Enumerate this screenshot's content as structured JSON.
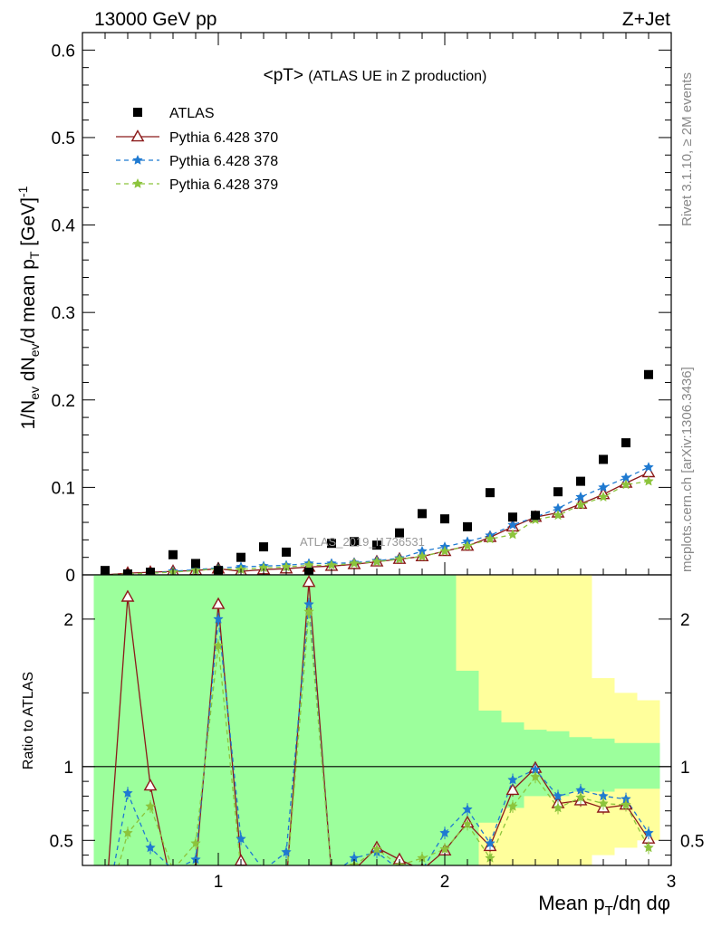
{
  "header": {
    "energy_label": "13000 GeV pp",
    "process_label": "Z+Jet",
    "plot_title": "<pT>",
    "plot_subtitle": "(ATLAS UE in Z production)",
    "watermark": "ATLAS_2019_I1736531",
    "side_label_top": "Rivet 3.1.10, ≥ 2M events",
    "side_label_bottom": "mcplots.cern.ch [arXiv:1306.3436]"
  },
  "colors": {
    "data": "#000000",
    "mc370": "#8b1a1a",
    "mc378": "#1f7ad1",
    "mc379": "#8cc43c",
    "band_inner": "#9cff9c",
    "band_outer": "#ffff9c"
  },
  "chart_data": [
    {
      "type": "scatter",
      "panel": "main",
      "ylabel": "1/N_ev dN_ev/d mean p_T [GeV]^-1",
      "xlim": [
        0.4,
        3.0
      ],
      "ylim": [
        0,
        0.62
      ],
      "yticks": [
        0,
        0.1,
        0.2,
        0.3,
        0.4,
        0.5,
        0.6
      ],
      "ytick_labels": [
        "0",
        "0.1",
        "0.2",
        "0.3",
        "0.4",
        "0.5",
        "0.6"
      ],
      "legend_position": "top-left",
      "x": [
        0.5,
        0.6,
        0.7,
        0.8,
        0.9,
        1.0,
        1.1,
        1.2,
        1.3,
        1.4,
        1.5,
        1.6,
        1.7,
        1.8,
        1.9,
        2.0,
        2.1,
        2.2,
        2.3,
        2.4,
        2.5,
        2.6,
        2.7,
        2.8,
        2.9
      ],
      "series": [
        {
          "name": "ATLAS",
          "marker": "square",
          "values": [
            0.005,
            0.001,
            0.003,
            0.023,
            0.013,
            0.005,
            0.02,
            0.032,
            0.026,
            0.003,
            0.036,
            0.038,
            0.034,
            0.048,
            0.07,
            0.064,
            0.055,
            0.094,
            0.066,
            0.068,
            0.095,
            0.107,
            0.132,
            0.151,
            0.229
          ]
        },
        {
          "name": "Pythia 6.428 370",
          "marker": "triangle",
          "values": [
            0.0,
            0.002,
            0.003,
            0.004,
            0.005,
            0.007,
            0.004,
            0.006,
            0.007,
            0.009,
            0.01,
            0.012,
            0.015,
            0.018,
            0.021,
            0.027,
            0.033,
            0.043,
            0.055,
            0.066,
            0.071,
            0.081,
            0.092,
            0.105,
            0.117
          ]
        },
        {
          "name": "Pythia 6.428 378",
          "marker": "star",
          "values": [
            0.0,
            0.001,
            0.002,
            0.004,
            0.006,
            0.008,
            0.009,
            0.01,
            0.011,
            0.013,
            0.013,
            0.014,
            0.016,
            0.019,
            0.027,
            0.032,
            0.038,
            0.045,
            0.057,
            0.066,
            0.076,
            0.089,
            0.1,
            0.111,
            0.123
          ]
        },
        {
          "name": "Pythia 6.428 379",
          "marker": "star",
          "values": [
            0.0,
            0.001,
            0.002,
            0.003,
            0.005,
            0.007,
            0.006,
            0.008,
            0.009,
            0.011,
            0.011,
            0.013,
            0.015,
            0.018,
            0.021,
            0.027,
            0.033,
            0.041,
            0.046,
            0.063,
            0.068,
            0.08,
            0.089,
            0.103,
            0.107
          ]
        }
      ]
    },
    {
      "type": "line",
      "panel": "ratio",
      "xlabel": "Mean p_T/dη dφ",
      "ylabel": "Ratio to ATLAS",
      "xlim": [
        0.4,
        3.0
      ],
      "ylim": [
        0.33,
        2.3
      ],
      "xticks": [
        1,
        2,
        3
      ],
      "xtick_labels": [
        "1",
        "2",
        "3"
      ],
      "yticks": [
        0.5,
        1,
        2
      ],
      "ytick_labels": [
        "0.5",
        "1",
        "2"
      ],
      "x": [
        0.5,
        0.6,
        0.7,
        0.8,
        0.9,
        1.0,
        1.1,
        1.2,
        1.3,
        1.4,
        1.5,
        1.6,
        1.7,
        1.8,
        1.9,
        2.0,
        2.1,
        2.2,
        2.3,
        2.4,
        2.5,
        2.6,
        2.7,
        2.8,
        2.9
      ],
      "bands": {
        "inner": [
          [
            0.2,
            2.3
          ],
          [
            0.2,
            2.3
          ],
          [
            0.2,
            2.3
          ],
          [
            0.2,
            2.3
          ],
          [
            0.2,
            2.3
          ],
          [
            0.2,
            2.3
          ],
          [
            0.2,
            2.3
          ],
          [
            0.2,
            2.3
          ],
          [
            0.2,
            2.3
          ],
          [
            0.2,
            2.3
          ],
          [
            0.2,
            2.3
          ],
          [
            0.2,
            2.3
          ],
          [
            0.2,
            2.3
          ],
          [
            0.2,
            2.3
          ],
          [
            0.2,
            2.3
          ],
          [
            0.2,
            2.3
          ],
          [
            0.3,
            1.65
          ],
          [
            0.62,
            1.38
          ],
          [
            0.72,
            1.3
          ],
          [
            0.8,
            1.25
          ],
          [
            0.8,
            1.24
          ],
          [
            0.83,
            1.2
          ],
          [
            0.83,
            1.19
          ],
          [
            0.85,
            1.16
          ],
          [
            0.85,
            1.16
          ]
        ],
        "outer": [
          [
            0.2,
            2.3
          ],
          [
            0.2,
            2.3
          ],
          [
            0.2,
            2.3
          ],
          [
            0.2,
            2.3
          ],
          [
            0.2,
            2.3
          ],
          [
            0.2,
            2.3
          ],
          [
            0.2,
            2.3
          ],
          [
            0.2,
            2.3
          ],
          [
            0.2,
            2.3
          ],
          [
            0.2,
            2.3
          ],
          [
            0.2,
            2.3
          ],
          [
            0.2,
            2.3
          ],
          [
            0.2,
            2.3
          ],
          [
            0.2,
            2.3
          ],
          [
            0.2,
            2.3
          ],
          [
            0.2,
            2.3
          ],
          [
            0.2,
            2.3
          ],
          [
            0.2,
            2.3
          ],
          [
            0.2,
            2.3
          ],
          [
            0.2,
            2.3
          ],
          [
            0.2,
            2.3
          ],
          [
            0.2,
            2.3
          ],
          [
            0.4,
            1.6
          ],
          [
            0.45,
            1.5
          ],
          [
            0.5,
            1.45
          ]
        ]
      },
      "series": [
        {
          "name": "Pythia 6.428 370",
          "values": [
            0.0,
            2.15,
            0.87,
            0.15,
            0.3,
            2.1,
            0.36,
            0.2,
            0.2,
            2.25,
            0.27,
            0.3,
            0.45,
            0.37,
            0.3,
            0.43,
            0.62,
            0.46,
            0.84,
            0.99,
            0.75,
            0.77,
            0.72,
            0.74,
            0.51
          ]
        },
        {
          "name": "Pythia 6.428 378",
          "values": [
            0.0,
            0.82,
            0.45,
            0.3,
            0.37,
            2.0,
            0.51,
            0.3,
            0.42,
            2.1,
            0.27,
            0.38,
            0.42,
            0.3,
            0.3,
            0.55,
            0.71,
            0.48,
            0.91,
            0.98,
            0.8,
            0.84,
            0.8,
            0.78,
            0.55
          ]
        },
        {
          "name": "Pythia 6.428 379",
          "values": [
            0.0,
            0.55,
            0.73,
            0.3,
            0.48,
            1.82,
            0.3,
            0.25,
            0.2,
            2.05,
            0.27,
            0.33,
            0.44,
            0.33,
            0.38,
            0.44,
            0.61,
            0.38,
            0.73,
            0.93,
            0.72,
            0.79,
            0.75,
            0.74,
            0.45
          ]
        }
      ]
    }
  ]
}
